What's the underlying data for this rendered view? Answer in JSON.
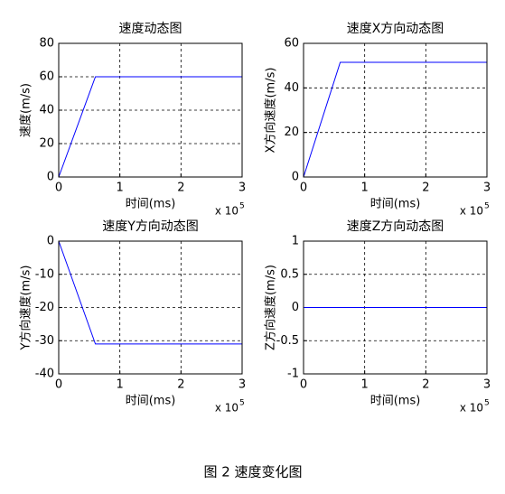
{
  "chart_data": [
    {
      "type": "line",
      "title": "速度动态图",
      "xlabel": "时间(ms)",
      "ylabel": "速度(m/s)",
      "x_scale_base": "x 10",
      "x_scale_exponent": "5",
      "x": [
        0,
        0.6,
        3
      ],
      "values": [
        0,
        60,
        60
      ],
      "color": "#0000ff",
      "xlim": [
        0,
        3
      ],
      "xticks": [
        0,
        1,
        2,
        3
      ],
      "ylim": [
        0,
        80
      ],
      "yticks": [
        0,
        20,
        40,
        60,
        80
      ],
      "grid": true
    },
    {
      "type": "line",
      "title": "速度X方向动态图",
      "xlabel": "时间(ms)",
      "ylabel": "X方向速度(m/s)",
      "x_scale_base": "x 10",
      "x_scale_exponent": "5",
      "x": [
        0,
        0.6,
        3
      ],
      "values": [
        0,
        51.5,
        51.5
      ],
      "color": "#0000ff",
      "xlim": [
        0,
        3
      ],
      "xticks": [
        0,
        1,
        2,
        3
      ],
      "ylim": [
        0,
        60
      ],
      "yticks": [
        0,
        20,
        40,
        60
      ],
      "grid": true
    },
    {
      "type": "line",
      "title": "速度Y方向动态图",
      "xlabel": "时间(ms)",
      "ylabel": "Y方向速度(m/s)",
      "x_scale_base": "x 10",
      "x_scale_exponent": "5",
      "x": [
        0,
        0.6,
        3
      ],
      "values": [
        0,
        -31,
        -31
      ],
      "color": "#0000ff",
      "xlim": [
        0,
        3
      ],
      "xticks": [
        0,
        1,
        2,
        3
      ],
      "ylim": [
        -40,
        0
      ],
      "yticks": [
        -40,
        -30,
        -20,
        -10,
        0
      ],
      "grid": true
    },
    {
      "type": "line",
      "title": "速度Z方向动态图",
      "xlabel": "时间(ms)",
      "ylabel": "Z方向速度(m/s)",
      "x_scale_base": "x 10",
      "x_scale_exponent": "5",
      "x": [
        0,
        0.6,
        3
      ],
      "values": [
        0,
        0,
        0
      ],
      "color": "#0000ff",
      "xlim": [
        0,
        3
      ],
      "xticks": [
        0,
        1,
        2,
        3
      ],
      "ylim": [
        -1,
        1
      ],
      "yticks": [
        -1,
        -0.5,
        0,
        0.5,
        1
      ],
      "grid": true
    }
  ],
  "caption": "图 2  速度变化图"
}
